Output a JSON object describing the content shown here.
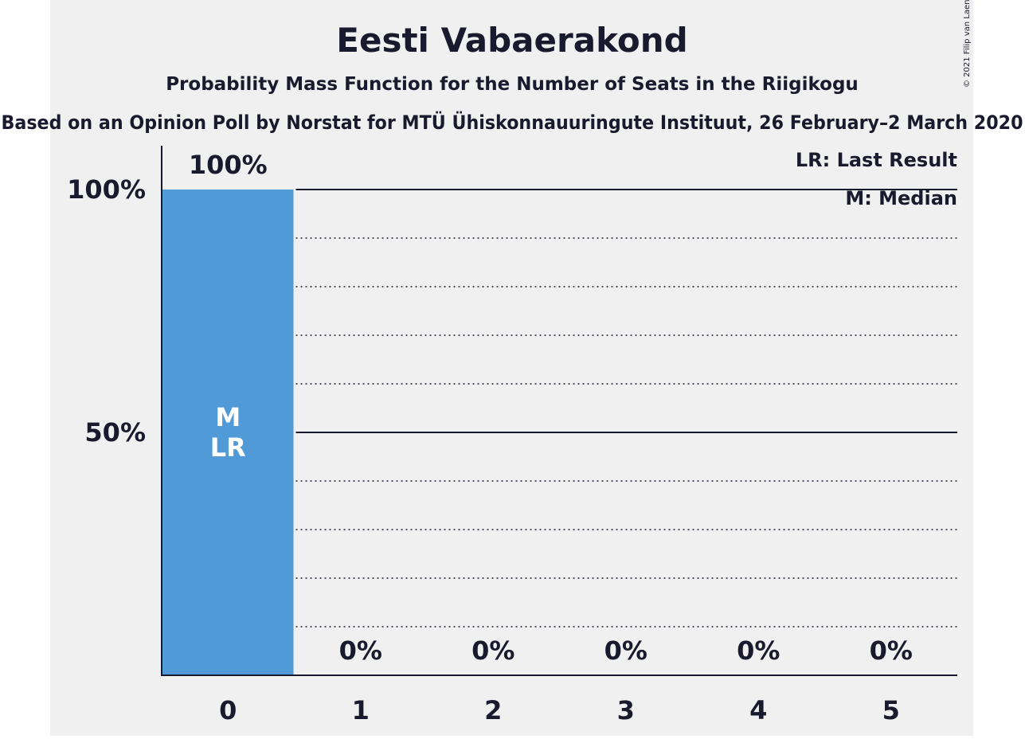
{
  "title": "Eesti Vabaerakond",
  "subtitle": "Probability Mass Function for the Number of Seats in the Riigikogu",
  "source": "Based on an Opinion Poll by Norstat for MTÜ Ühiskonnauuringute Instituut, 26 February–2 March 2020",
  "copyright": "© 2021 Filip van Laenen",
  "legend": {
    "last_result": "LR: Last Result",
    "median": "M: Median"
  },
  "colors": {
    "panel_background": "#f0f0f0",
    "bar": "#519ad8",
    "text": "#1a1a2e",
    "bar_label": "#ffffff"
  },
  "chart_data": {
    "type": "bar",
    "categories": [
      "0",
      "1",
      "2",
      "3",
      "4",
      "5"
    ],
    "values": [
      100,
      0,
      0,
      0,
      0,
      0
    ],
    "value_labels": [
      "100%",
      "0%",
      "0%",
      "0%",
      "0%",
      "0%"
    ],
    "y_tick_labels": [
      {
        "value": 50,
        "label": "50%"
      },
      {
        "value": 100,
        "label": "100%"
      }
    ],
    "ylim": [
      0,
      100
    ],
    "grid": {
      "major_step": 50,
      "minor_step": 10
    },
    "bar_markers": [
      {
        "category": "0",
        "lines": [
          "M",
          "LR"
        ]
      }
    ],
    "legend_position": "top-right",
    "xlabel": "",
    "ylabel": ""
  }
}
